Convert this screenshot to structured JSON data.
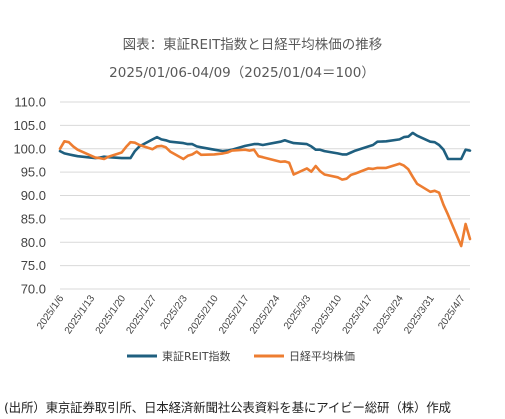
{
  "chart_data": {
    "type": "line",
    "title": "図表：東証REIT指数と日経平均株価の推移",
    "subtitle": "2025/01/06-04/09（2025/01/04＝100）",
    "xlabel": "",
    "ylabel": "",
    "ylim": [
      70,
      110
    ],
    "y_ticks": [
      "110.0",
      "105.0",
      "100.0",
      "95.0",
      "90.0",
      "85.0",
      "80.0",
      "75.0",
      "70.0"
    ],
    "x_tick_labels": [
      "2025/1/6",
      "2025/1/13",
      "2025/1/20",
      "2025/1/27",
      "2025/2/3",
      "2025/2/10",
      "2025/2/17",
      "2025/2/24",
      "2025/3/3",
      "2025/3/10",
      "2025/3/17",
      "2025/3/24",
      "2025/3/31",
      "2025/4/7"
    ],
    "grid": true,
    "legend_position": "bottom",
    "series": [
      {
        "name": "東証REIT指数",
        "color": "#1f5f7f",
        "dates": [
          "2025-01-06",
          "2025-01-07",
          "2025-01-08",
          "2025-01-09",
          "2025-01-10",
          "2025-01-14",
          "2025-01-15",
          "2025-01-16",
          "2025-01-17",
          "2025-01-20",
          "2025-01-21",
          "2025-01-22",
          "2025-01-23",
          "2025-01-24",
          "2025-01-27",
          "2025-01-28",
          "2025-01-29",
          "2025-01-30",
          "2025-01-31",
          "2025-02-03",
          "2025-02-04",
          "2025-02-05",
          "2025-02-06",
          "2025-02-07",
          "2025-02-10",
          "2025-02-12",
          "2025-02-13",
          "2025-02-14",
          "2025-02-17",
          "2025-02-18",
          "2025-02-19",
          "2025-02-20",
          "2025-02-21",
          "2025-02-25",
          "2025-02-26",
          "2025-02-27",
          "2025-02-28",
          "2025-03-03",
          "2025-03-04",
          "2025-03-05",
          "2025-03-06",
          "2025-03-07",
          "2025-03-10",
          "2025-03-11",
          "2025-03-12",
          "2025-03-13",
          "2025-03-14",
          "2025-03-17",
          "2025-03-18",
          "2025-03-19",
          "2025-03-21",
          "2025-03-24",
          "2025-03-25",
          "2025-03-26",
          "2025-03-27",
          "2025-03-28",
          "2025-03-31",
          "2025-04-01",
          "2025-04-02",
          "2025-04-03",
          "2025-04-04",
          "2025-04-07",
          "2025-04-08",
          "2025-04-09"
        ],
        "values": [
          99.5,
          99.0,
          98.8,
          98.6,
          98.4,
          98.0,
          98.1,
          98.3,
          98.2,
          98.0,
          98.0,
          98.0,
          99.5,
          100.5,
          102.0,
          102.5,
          102.0,
          101.8,
          101.5,
          101.2,
          101.0,
          101.0,
          100.5,
          100.3,
          99.8,
          99.5,
          99.6,
          99.8,
          100.6,
          100.8,
          101.0,
          101.0,
          100.8,
          101.5,
          101.8,
          101.5,
          101.2,
          101.0,
          100.5,
          99.8,
          99.8,
          99.5,
          99.0,
          98.8,
          98.8,
          99.2,
          99.6,
          100.5,
          100.8,
          101.5,
          101.6,
          102.0,
          102.5,
          102.6,
          103.4,
          102.8,
          101.5,
          101.4,
          100.8,
          99.8,
          97.8,
          97.8,
          99.8,
          99.6
        ]
      },
      {
        "name": "日経平均株価",
        "color": "#ed7d31",
        "dates": [
          "2025-01-06",
          "2025-01-07",
          "2025-01-08",
          "2025-01-09",
          "2025-01-10",
          "2025-01-14",
          "2025-01-15",
          "2025-01-16",
          "2025-01-17",
          "2025-01-20",
          "2025-01-21",
          "2025-01-22",
          "2025-01-23",
          "2025-01-24",
          "2025-01-27",
          "2025-01-28",
          "2025-01-29",
          "2025-01-30",
          "2025-01-31",
          "2025-02-03",
          "2025-02-04",
          "2025-02-05",
          "2025-02-06",
          "2025-02-07",
          "2025-02-10",
          "2025-02-12",
          "2025-02-13",
          "2025-02-14",
          "2025-02-17",
          "2025-02-18",
          "2025-02-19",
          "2025-02-20",
          "2025-02-21",
          "2025-02-25",
          "2025-02-26",
          "2025-02-27",
          "2025-02-28",
          "2025-03-03",
          "2025-03-04",
          "2025-03-05",
          "2025-03-06",
          "2025-03-07",
          "2025-03-10",
          "2025-03-11",
          "2025-03-12",
          "2025-03-13",
          "2025-03-14",
          "2025-03-17",
          "2025-03-18",
          "2025-03-19",
          "2025-03-21",
          "2025-03-24",
          "2025-03-25",
          "2025-03-26",
          "2025-03-27",
          "2025-03-28",
          "2025-03-31",
          "2025-04-01",
          "2025-04-02",
          "2025-04-03",
          "2025-04-04",
          "2025-04-07",
          "2025-04-08",
          "2025-04-09"
        ],
        "values": [
          100.0,
          101.6,
          101.4,
          100.5,
          99.8,
          98.1,
          98.0,
          97.8,
          98.3,
          99.2,
          100.4,
          101.4,
          101.3,
          100.8,
          99.9,
          100.5,
          100.6,
          100.3,
          99.4,
          97.8,
          98.5,
          98.8,
          99.4,
          98.7,
          98.8,
          99.0,
          99.2,
          99.6,
          99.8,
          99.6,
          99.8,
          98.4,
          98.2,
          97.2,
          97.3,
          97.0,
          94.5,
          95.8,
          95.1,
          96.3,
          95.2,
          94.5,
          93.9,
          93.4,
          93.6,
          94.4,
          94.7,
          95.8,
          95.7,
          95.9,
          95.9,
          96.8,
          96.4,
          95.6,
          94.0,
          92.5,
          90.8,
          91.0,
          90.6,
          88.0,
          85.9,
          79.2,
          83.9,
          80.7
        ]
      }
    ]
  },
  "source_note": "(出所）東京証券取引所、日本経済新聞社公表資料を基にアイビー総研（株）作成"
}
